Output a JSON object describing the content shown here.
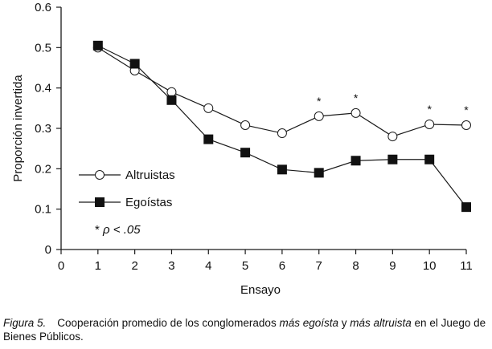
{
  "chart_data": {
    "type": "line",
    "xlabel": "Ensayo",
    "ylabel": "Proporción invertida",
    "xlim": [
      0,
      11
    ],
    "ylim": [
      0,
      0.6
    ],
    "x_ticks": [
      "0",
      "1",
      "2",
      "3",
      "4",
      "5",
      "6",
      "7",
      "8",
      "9",
      "10",
      "11"
    ],
    "y_ticks": [
      "0",
      "0.1",
      "0.2",
      "0.3",
      "0.4",
      "0.5",
      "0.6"
    ],
    "x": [
      1,
      2,
      3,
      4,
      5,
      6,
      7,
      8,
      9,
      10,
      11
    ],
    "series": [
      {
        "name": "Altruistas",
        "marker": "open-circle",
        "values": [
          0.5,
          0.443,
          0.39,
          0.35,
          0.308,
          0.288,
          0.33,
          0.338,
          0.28,
          0.31,
          0.308
        ]
      },
      {
        "name": "Egoístas",
        "marker": "filled-square",
        "values": [
          0.505,
          0.46,
          0.37,
          0.273,
          0.24,
          0.198,
          0.19,
          0.22,
          0.223,
          0.223,
          0.105
        ]
      }
    ],
    "significance_marks": {
      "symbol": "*",
      "trials": [
        7,
        8,
        10,
        11
      ]
    },
    "legend_note": {
      "symbol": "*",
      "text": "ρ < .05"
    },
    "legend_position": "bottom-left",
    "grid": false,
    "colors": {
      "line": "#1a1a1a",
      "open_marker_fill": "#ffffff",
      "filled_marker": "#111111"
    }
  },
  "caption": {
    "label": "Figura 5.",
    "text_1": "Cooperación promedio de los conglomerados ",
    "ital_1": "más egoísta",
    "text_2": " y ",
    "ital_2": "más altruista",
    "text_3": " en el Juego de Bienes Públicos."
  }
}
